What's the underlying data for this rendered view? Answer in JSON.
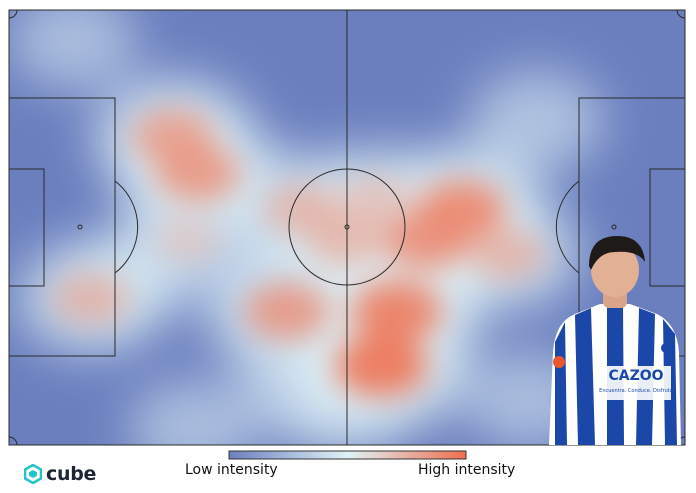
{
  "colors": {
    "pitch_low": "#6b7fbf",
    "mid": "#dff2f7",
    "high": "#ef6f4f",
    "lines": "#2a2a2a",
    "logo_accent": "#22c3cc",
    "kit_blue": "#1b48a8"
  },
  "chart_data": {
    "type": "heatmap",
    "title": "",
    "xlabel": "",
    "ylabel": "",
    "colorbar": {
      "low_label": "Low intensity",
      "high_label": "High intensity"
    },
    "pitch": {
      "length": 105,
      "width": 68,
      "lines": true
    },
    "xlim": [
      0,
      105
    ],
    "ylim": [
      0,
      68
    ],
    "hotspots": [
      {
        "x": 60.2,
        "y": 47.1,
        "intensity": 0.9
      },
      {
        "x": 70.3,
        "y": 31.2,
        "intensity": 0.85
      },
      {
        "x": 57.0,
        "y": 29.7,
        "intensity": 0.45
      },
      {
        "x": 29.3,
        "y": 25.5,
        "intensity": 0.75
      },
      {
        "x": 25.5,
        "y": 19.8,
        "intensity": 0.7
      },
      {
        "x": 45.5,
        "y": 31.2,
        "intensity": 0.55
      },
      {
        "x": 52.3,
        "y": 35.9,
        "intensity": 0.55
      },
      {
        "x": 64.9,
        "y": 36.0,
        "intensity": 0.8
      },
      {
        "x": 77.3,
        "y": 38.2,
        "intensity": 0.55
      },
      {
        "x": 43.2,
        "y": 47.1,
        "intensity": 0.75
      },
      {
        "x": 57.8,
        "y": 55.6,
        "intensity": 0.95
      },
      {
        "x": 12.7,
        "y": 45.1,
        "intensity": 0.55
      },
      {
        "x": 27.8,
        "y": 35.9,
        "intensity": 0.35
      },
      {
        "x": 18.6,
        "y": 41.9,
        "intensity": 0.25
      },
      {
        "x": 82.0,
        "y": 17.3,
        "intensity": 0.3
      },
      {
        "x": 10.0,
        "y": 4.8,
        "intensity": 0.2
      },
      {
        "x": 28.5,
        "y": 65.4,
        "intensity": 0.2
      },
      {
        "x": 80.5,
        "y": 60.9,
        "intensity": 0.2
      },
      {
        "x": 52.3,
        "y": 62.4,
        "intensity": 0.25
      },
      {
        "x": 45.5,
        "y": 59.0,
        "intensity": 0.3
      }
    ]
  },
  "branding": {
    "logo_text": "cube"
  },
  "player_cutout": {
    "sponsor_text": "CAZOO",
    "sponsor_subtext": "Encuentra. Conduce. Disfruta"
  }
}
